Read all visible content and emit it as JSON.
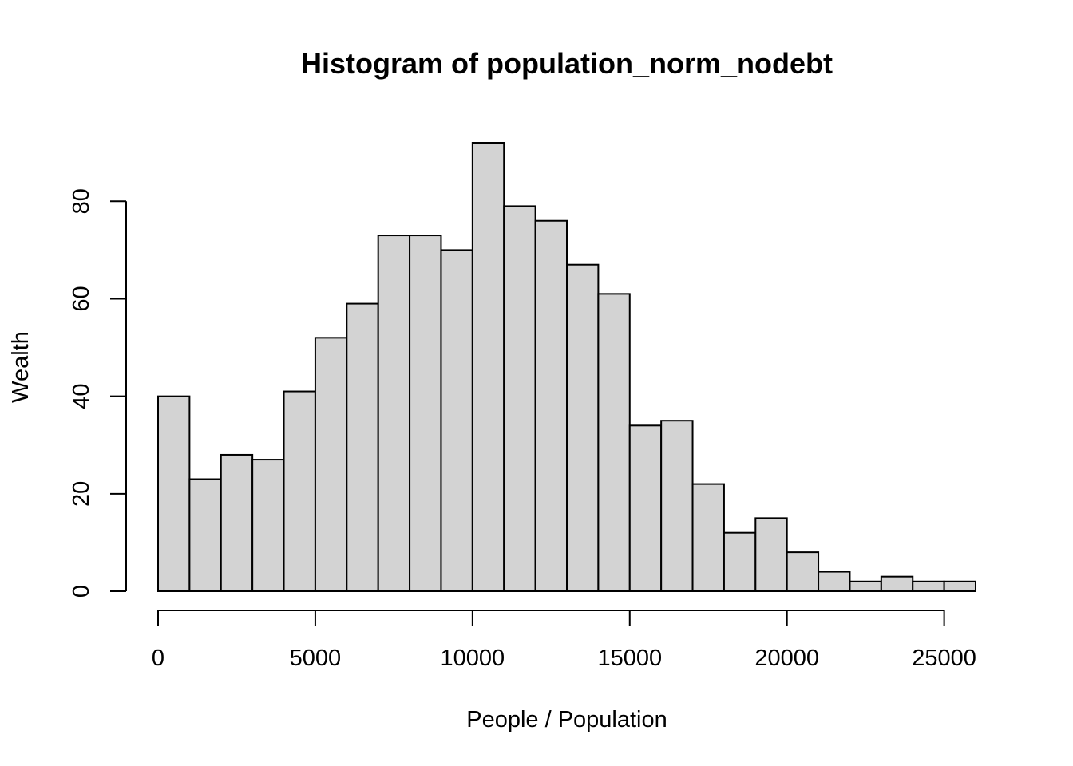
{
  "chart_data": {
    "type": "bar",
    "title": "Histogram of population_norm_nodebt",
    "xlabel": "People / Population",
    "ylabel": "Wealth",
    "xlim": [
      0,
      26000
    ],
    "ylim": [
      0,
      92
    ],
    "bin_width": 1000,
    "bins_start": [
      0,
      1000,
      2000,
      3000,
      4000,
      5000,
      6000,
      7000,
      8000,
      9000,
      10000,
      11000,
      12000,
      13000,
      14000,
      15000,
      16000,
      17000,
      18000,
      19000,
      20000,
      21000,
      22000,
      23000,
      24000,
      25000
    ],
    "values": [
      40,
      23,
      28,
      27,
      41,
      52,
      59,
      73,
      73,
      70,
      92,
      79,
      76,
      67,
      61,
      34,
      35,
      22,
      12,
      15,
      8,
      4,
      2,
      3,
      2,
      2
    ],
    "x_ticks": [
      0,
      5000,
      10000,
      15000,
      20000,
      25000
    ],
    "x_tick_labels": [
      "0",
      "5000",
      "10000",
      "15000",
      "20000",
      "25000"
    ],
    "y_ticks": [
      0,
      20,
      40,
      60,
      80
    ],
    "y_tick_labels": [
      "0",
      "20",
      "40",
      "60",
      "80"
    ],
    "bar_color": "#d3d3d3",
    "border_color": "#000000",
    "grid": false,
    "legend": "none"
  }
}
